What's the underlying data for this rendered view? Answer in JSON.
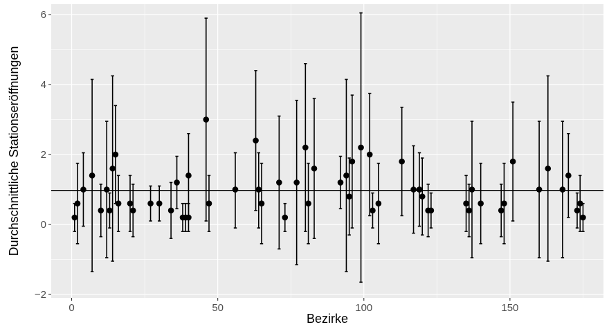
{
  "chart_data": {
    "type": "scatter",
    "xlabel": "Bezirke",
    "ylabel": "Durchschnittliche Stationseröffnungen",
    "xlim": [
      -7,
      182
    ],
    "ylim": [
      -2.1,
      6.3
    ],
    "xticks": [
      0,
      50,
      100,
      150
    ],
    "xtick_labels": [
      "0",
      "50",
      "100",
      "150"
    ],
    "yticks": [
      -2,
      0,
      2,
      4,
      6
    ],
    "ytick_labels": [
      "−2",
      "0",
      "2",
      "4",
      "6"
    ],
    "hline": 0.97,
    "grid": true,
    "colors": {
      "panel": "#ebebeb",
      "grid": "#ffffff",
      "points": "#000000",
      "reference_line": "#000000"
    },
    "points": [
      {
        "x": 1,
        "y": 0.2,
        "lo": -0.2,
        "hi": 0.6
      },
      {
        "x": 2,
        "y": 0.6,
        "lo": -0.55,
        "hi": 1.75
      },
      {
        "x": 4,
        "y": 1.0,
        "lo": -0.05,
        "hi": 2.05
      },
      {
        "x": 7,
        "y": 1.4,
        "lo": -1.35,
        "hi": 4.15
      },
      {
        "x": 10,
        "y": 0.4,
        "lo": -0.35,
        "hi": 1.15
      },
      {
        "x": 12,
        "y": 1.0,
        "lo": -0.95,
        "hi": 2.95
      },
      {
        "x": 13,
        "y": 0.4,
        "lo": -0.1,
        "hi": 0.9
      },
      {
        "x": 14,
        "y": 1.6,
        "lo": -1.05,
        "hi": 4.25
      },
      {
        "x": 15,
        "y": 2.0,
        "lo": 0.6,
        "hi": 3.4
      },
      {
        "x": 16,
        "y": 0.6,
        "lo": -0.2,
        "hi": 1.4
      },
      {
        "x": 20,
        "y": 0.6,
        "lo": -0.2,
        "hi": 1.4
      },
      {
        "x": 21,
        "y": 0.4,
        "lo": -0.35,
        "hi": 1.15
      },
      {
        "x": 27,
        "y": 0.6,
        "lo": 0.1,
        "hi": 1.1
      },
      {
        "x": 30,
        "y": 0.6,
        "lo": 0.1,
        "hi": 1.1
      },
      {
        "x": 34,
        "y": 0.4,
        "lo": -0.4,
        "hi": 1.2
      },
      {
        "x": 36,
        "y": 1.2,
        "lo": 0.45,
        "hi": 1.95
      },
      {
        "x": 38,
        "y": 0.2,
        "lo": -0.2,
        "hi": 0.6
      },
      {
        "x": 39,
        "y": 0.2,
        "lo": -0.2,
        "hi": 0.6
      },
      {
        "x": 40,
        "y": 0.2,
        "lo": -0.2,
        "hi": 0.6
      },
      {
        "x": 40,
        "y": 1.4,
        "lo": 0.2,
        "hi": 2.6
      },
      {
        "x": 46,
        "y": 3.0,
        "lo": 0.1,
        "hi": 5.9
      },
      {
        "x": 47,
        "y": 0.6,
        "lo": -0.2,
        "hi": 1.4
      },
      {
        "x": 56,
        "y": 1.0,
        "lo": -0.1,
        "hi": 2.05
      },
      {
        "x": 63,
        "y": 2.4,
        "lo": 0.4,
        "hi": 4.4
      },
      {
        "x": 64,
        "y": 1.0,
        "lo": -0.1,
        "hi": 2.05
      },
      {
        "x": 65,
        "y": 0.6,
        "lo": -0.55,
        "hi": 1.75
      },
      {
        "x": 71,
        "y": 1.2,
        "lo": -0.7,
        "hi": 3.1
      },
      {
        "x": 73,
        "y": 0.2,
        "lo": -0.2,
        "hi": 0.6
      },
      {
        "x": 77,
        "y": 1.2,
        "lo": -1.15,
        "hi": 3.55
      },
      {
        "x": 80,
        "y": 2.2,
        "lo": -0.2,
        "hi": 4.6
      },
      {
        "x": 81,
        "y": 0.6,
        "lo": -0.55,
        "hi": 1.75
      },
      {
        "x": 83,
        "y": 1.6,
        "lo": -0.4,
        "hi": 3.6
      },
      {
        "x": 92,
        "y": 1.2,
        "lo": 0.45,
        "hi": 1.95
      },
      {
        "x": 94,
        "y": 1.4,
        "lo": -1.35,
        "hi": 4.15
      },
      {
        "x": 95,
        "y": 0.8,
        "lo": -0.3,
        "hi": 1.9
      },
      {
        "x": 96,
        "y": 1.8,
        "lo": -0.1,
        "hi": 3.7
      },
      {
        "x": 99,
        "y": 2.2,
        "lo": -1.65,
        "hi": 6.05
      },
      {
        "x": 102,
        "y": 2.0,
        "lo": 0.25,
        "hi": 3.75
      },
      {
        "x": 103,
        "y": 0.4,
        "lo": -0.1,
        "hi": 0.9
      },
      {
        "x": 105,
        "y": 0.6,
        "lo": -0.55,
        "hi": 1.75
      },
      {
        "x": 113,
        "y": 1.8,
        "lo": 0.25,
        "hi": 3.35
      },
      {
        "x": 117,
        "y": 1.0,
        "lo": -0.25,
        "hi": 2.25
      },
      {
        "x": 119,
        "y": 1.0,
        "lo": -0.05,
        "hi": 2.05
      },
      {
        "x": 120,
        "y": 0.8,
        "lo": -0.3,
        "hi": 1.9
      },
      {
        "x": 122,
        "y": 0.4,
        "lo": -0.35,
        "hi": 1.15
      },
      {
        "x": 123,
        "y": 0.4,
        "lo": -0.1,
        "hi": 0.9
      },
      {
        "x": 135,
        "y": 0.6,
        "lo": -0.2,
        "hi": 1.4
      },
      {
        "x": 136,
        "y": 0.4,
        "lo": -0.35,
        "hi": 1.15
      },
      {
        "x": 137,
        "y": 1.0,
        "lo": -0.95,
        "hi": 2.95
      },
      {
        "x": 140,
        "y": 0.6,
        "lo": -0.55,
        "hi": 1.75
      },
      {
        "x": 147,
        "y": 0.4,
        "lo": -0.35,
        "hi": 1.15
      },
      {
        "x": 148,
        "y": 0.6,
        "lo": -0.55,
        "hi": 1.75
      },
      {
        "x": 151,
        "y": 1.8,
        "lo": 0.1,
        "hi": 3.5
      },
      {
        "x": 160,
        "y": 1.0,
        "lo": -0.95,
        "hi": 2.95
      },
      {
        "x": 163,
        "y": 1.6,
        "lo": -1.05,
        "hi": 4.25
      },
      {
        "x": 168,
        "y": 1.0,
        "lo": -0.95,
        "hi": 2.95
      },
      {
        "x": 170,
        "y": 1.4,
        "lo": 0.2,
        "hi": 2.6
      },
      {
        "x": 173,
        "y": 0.4,
        "lo": -0.1,
        "hi": 0.9
      },
      {
        "x": 174,
        "y": 0.6,
        "lo": -0.2,
        "hi": 1.4
      },
      {
        "x": 175,
        "y": 0.2,
        "lo": -0.2,
        "hi": 0.6
      }
    ]
  }
}
